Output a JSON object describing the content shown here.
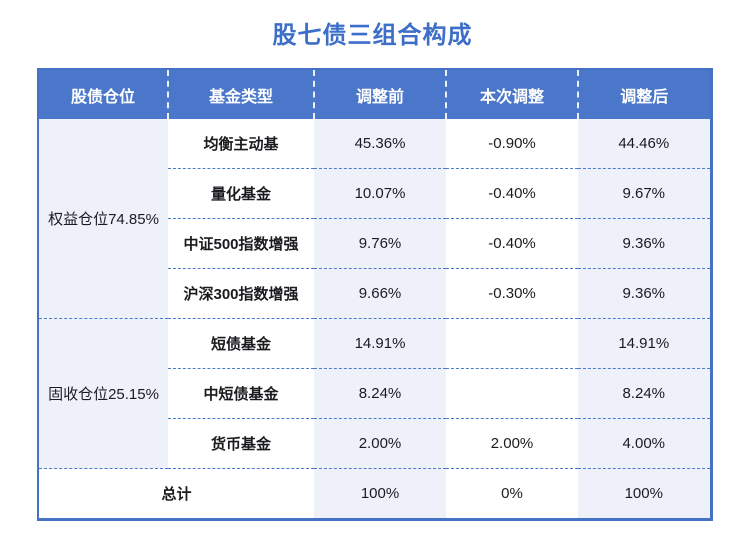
{
  "title": "股七债三组合构成",
  "colors": {
    "title_text": "#3d6fc9",
    "header_bg": "#4a77c9",
    "header_text": "#ffffff",
    "table_border": "#4472c4",
    "row_divider": "#4a7acc",
    "light_cell_bg": "#eef1fa",
    "body_text": "#1b1b1f"
  },
  "chart_data": {
    "type": "table",
    "title": "股七债三组合构成",
    "columns": [
      "股债仓位",
      "基金类型",
      "调整前",
      "本次调整",
      "调整后"
    ],
    "sections": [
      {
        "group": "权益仓位74.85%",
        "rows": [
          [
            "均衡主动基",
            "45.36%",
            "-0.90%",
            "44.46%"
          ],
          [
            "量化基金",
            "10.07%",
            "-0.40%",
            "9.67%"
          ],
          [
            "中证500指数增强",
            "9.76%",
            "-0.40%",
            "9.36%"
          ],
          [
            "沪深300指数增强",
            "9.66%",
            "-0.30%",
            "9.36%"
          ]
        ]
      },
      {
        "group": "固收仓位25.15%",
        "rows": [
          [
            "短债基金",
            "14.91%",
            "",
            "14.91%"
          ],
          [
            "中短债基金",
            "8.24%",
            "",
            "8.24%"
          ],
          [
            "货币基金",
            "2.00%",
            "2.00%",
            "4.00%"
          ]
        ]
      }
    ],
    "total_row": [
      "总计",
      "100%",
      "0%",
      "100%"
    ]
  }
}
